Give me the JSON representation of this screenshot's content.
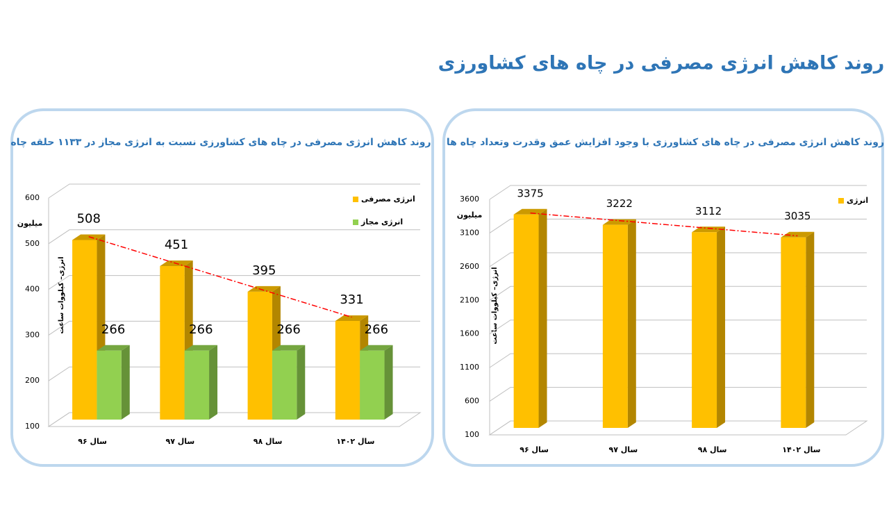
{
  "title": "روند کاهش انرژی مصرفی در چاه های کشاورزی",
  "chart_data": [
    {
      "type": "bar3d",
      "title": "روند کاهش انرژی مصرفی در چاه های کشاورزی نسبت به انرژی مجاز در ۱۱۳۳ حلقه چاه",
      "y_label": "انرژی– کیلووات ساعت",
      "y_unit": "میلیون",
      "categories": [
        "سال ۹۶",
        "سال ۹۷",
        "سال ۹۸",
        "سال ۱۴۰۲"
      ],
      "series": [
        {
          "name": "انرژی مصرفی",
          "color": "#ffc000",
          "values": [
            508,
            451,
            395,
            331
          ]
        },
        {
          "name": "انرژی مجاز",
          "color": "#92d050",
          "values": [
            266,
            266,
            266,
            266
          ]
        }
      ],
      "ylim": [
        100,
        600
      ],
      "yticks": [
        100,
        200,
        300,
        400,
        500,
        600
      ],
      "grid": true,
      "trendline": true,
      "trendline_color": "#ff0000"
    },
    {
      "type": "bar3d",
      "title": "روند کاهش انرژی مصرفی در چاه های کشاورزی با وجود افزایش عمق وقدرت وتعداد چاه ها",
      "y_label": "انرژی– کیلووات ساعت",
      "y_unit": "میلیون",
      "categories": [
        "سال ۹۶",
        "سال ۹۷",
        "سال ۹۸",
        "سال ۱۴۰۲"
      ],
      "series": [
        {
          "name": "انرژی",
          "color": "#ffc000",
          "values": [
            3375,
            3222,
            3112,
            3035
          ]
        }
      ],
      "ylim": [
        100,
        3600
      ],
      "yticks": [
        100,
        600,
        1100,
        1600,
        2100,
        2600,
        3100,
        3600
      ],
      "grid": true,
      "trendline": true,
      "trendline_color": "#ff0000"
    }
  ]
}
